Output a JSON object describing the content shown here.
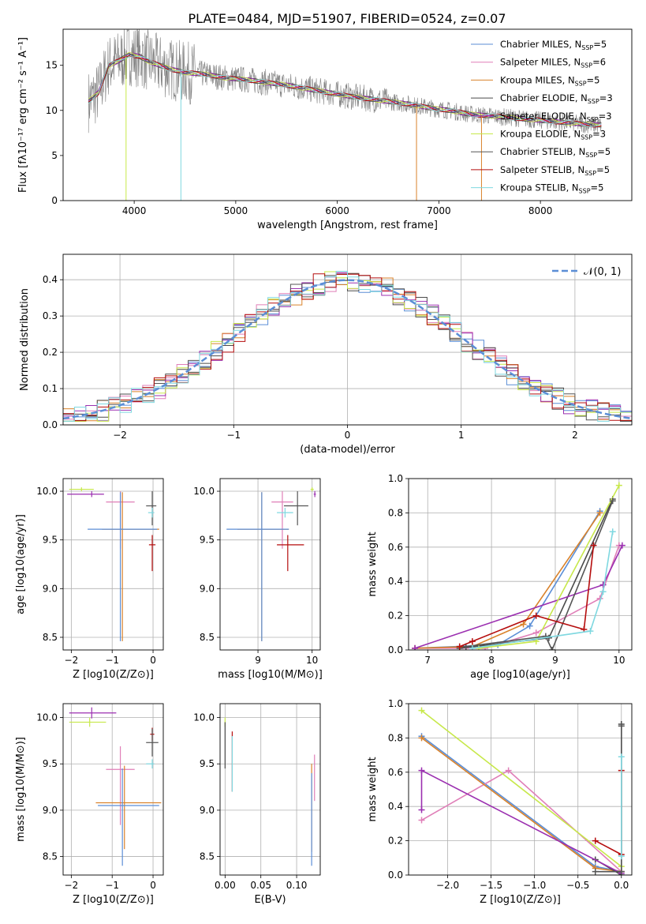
{
  "title": "PLATE=0484, MJD=51907, FIBERID=0524, z=0.07",
  "colors": {
    "Chabrier MILES": "#5b8ed6",
    "Salpeter MILES": "#e07fb8",
    "Kroupa MILES": "#d9822b",
    "Chabrier ELODIE": "#4a4a4a",
    "Salpeter ELODIE": "#9b2fb0",
    "Kroupa ELODIE": "#c7e84a",
    "Chabrier STELIB": "#555555",
    "Salpeter STELIB": "#b50d0d",
    "Kroupa STELIB": "#7fd8e0"
  },
  "chart_data": [
    {
      "id": "spectrum",
      "type": "line",
      "xlabel": "wavelength [Angstrom, rest frame]",
      "ylabel": "Flux [fλ10⁻¹⁷ erg cm⁻² s⁻¹ A⁻¹]",
      "xlim": [
        3300,
        8900
      ],
      "ylim": [
        0,
        19
      ],
      "xticks": [
        4000,
        5000,
        6000,
        7000,
        8000
      ],
      "yticks": [
        0,
        5,
        10,
        15
      ],
      "legend_position": "top-right",
      "legend": [
        "Chabrier MILES, N_SSP=5",
        "Salpeter MILES, N_SSP=6",
        "Kroupa MILES, N_SSP=5",
        "Chabrier ELODIE, N_SSP=3",
        "Salpeter ELODIE, N_SSP=3",
        "Kroupa ELODIE, N_SSP=3",
        "Chabrier STELIB, N_SSP=5",
        "Salpeter STELIB, N_SSP=5",
        "Kroupa STELIB, N_SSP=5"
      ],
      "model_continuum": {
        "x": [
          3550,
          3650,
          3750,
          3850,
          3950,
          4050,
          4150,
          4250,
          4350,
          4500,
          4700,
          4900,
          5100,
          5300,
          5500,
          5700,
          5900,
          6100,
          6300,
          6500,
          6700,
          6900,
          7100,
          7300,
          7500,
          7700,
          7900,
          8100,
          8300,
          8500
        ],
        "y": [
          11.0,
          12.0,
          15.0,
          15.5,
          16.2,
          16.0,
          15.4,
          15.0,
          14.6,
          14.2,
          14.0,
          13.6,
          13.4,
          13.1,
          12.8,
          12.4,
          12.0,
          11.6,
          11.3,
          11.0,
          10.7,
          10.3,
          10.0,
          9.6,
          9.4,
          9.2,
          9.0,
          8.8,
          8.6,
          8.4
        ]
      }
    },
    {
      "id": "residuals",
      "type": "line",
      "xlabel": "(data-model)/error",
      "ylabel": "Normed distribution",
      "xlim": [
        -2.5,
        2.5
      ],
      "ylim": [
        0,
        0.47
      ],
      "xticks": [
        -2,
        -1,
        0,
        1,
        2
      ],
      "yticks": [
        0.0,
        0.1,
        0.2,
        0.3,
        0.4
      ],
      "legend_label": "𝒩(0, 1)",
      "normal_curve": {
        "mean": 0,
        "sigma": 1
      }
    },
    {
      "id": "age_vs_Z",
      "type": "scatter",
      "xlabel": "Z [log10(Z/Z⊙)]",
      "ylabel": "age  [log10(age/yr)]",
      "xlim": [
        -2.2,
        0.25
      ],
      "ylim": [
        8.37,
        10.13
      ],
      "xticks": [
        -2,
        -1,
        0
      ],
      "yticks": [
        8.5,
        9.0,
        9.5,
        10.0
      ],
      "points": [
        {
          "model": "Kroupa ELODIE",
          "x": -1.75,
          "y": 10.02,
          "xerr": [
            0.3,
            0.3
          ],
          "yerr": [
            0.02,
            0.02
          ]
        },
        {
          "model": "Salpeter ELODIE",
          "x": -1.5,
          "y": 9.97,
          "xerr": [
            0.6,
            0.3
          ],
          "yerr": [
            0.03,
            0.03
          ]
        },
        {
          "model": "Salpeter MILES",
          "x": -0.8,
          "y": 9.89,
          "xerr": [
            0.35,
            0.35
          ],
          "yerr": [
            0.48,
            0.11
          ]
        },
        {
          "model": "Kroupa MILES",
          "x": -0.75,
          "y": 9.61,
          "xerr": [
            0.5,
            0.9
          ],
          "yerr": [
            1.15,
            0.38
          ]
        },
        {
          "model": "Chabrier MILES",
          "x": -0.8,
          "y": 9.61,
          "xerr": [
            0.8,
            0.9
          ],
          "yerr": [
            1.15,
            0.38
          ]
        },
        {
          "model": "Salpeter STELIB",
          "x": -0.02,
          "y": 9.45,
          "xerr": [
            0.08,
            0.08
          ],
          "yerr": [
            0.27,
            0.1
          ]
        },
        {
          "model": "Chabrier STELIB",
          "x": -0.02,
          "y": 9.85,
          "xerr": [
            0.15,
            0.1
          ],
          "yerr": [
            0.2,
            0.15
          ]
        },
        {
          "model": "Kroupa STELIB",
          "x": -0.02,
          "y": 9.78,
          "xerr": [
            0.1,
            0.05
          ],
          "yerr": [
            0.05,
            0.05
          ]
        }
      ]
    },
    {
      "id": "age_vs_mass",
      "type": "scatter",
      "xlabel": "mass [log10(M/M⊙)]",
      "ylabel": "",
      "xlim": [
        8.3,
        10.15
      ],
      "ylim": [
        8.37,
        10.13
      ],
      "xticks": [
        9,
        10
      ],
      "yticks": [
        8.5,
        9.0,
        9.5,
        10.0
      ],
      "points": [
        {
          "model": "Kroupa ELODIE",
          "x": 10.0,
          "y": 10.02,
          "xerr": [
            0.03,
            0.03
          ],
          "yerr": [
            0.02,
            0.02
          ]
        },
        {
          "model": "Salpeter ELODIE",
          "x": 10.05,
          "y": 9.97,
          "xerr": [
            0.02,
            0.02
          ],
          "yerr": [
            0.03,
            0.03
          ]
        },
        {
          "model": "Salpeter MILES",
          "x": 9.45,
          "y": 9.89,
          "xerr": [
            0.2,
            0.2
          ],
          "yerr": [
            0.48,
            0.11
          ]
        },
        {
          "model": "Kroupa MILES",
          "x": 9.07,
          "y": 9.61,
          "xerr": [
            0.45,
            0.5
          ],
          "yerr": [
            1.15,
            0.38
          ]
        },
        {
          "model": "Chabrier MILES",
          "x": 9.07,
          "y": 9.61,
          "xerr": [
            0.65,
            0.5
          ],
          "yerr": [
            1.15,
            0.38
          ]
        },
        {
          "model": "Salpeter STELIB",
          "x": 9.55,
          "y": 9.45,
          "xerr": [
            0.2,
            0.3
          ],
          "yerr": [
            0.27,
            0.1
          ]
        },
        {
          "model": "Chabrier STELIB",
          "x": 9.73,
          "y": 9.85,
          "xerr": [
            0.25,
            0.2
          ],
          "yerr": [
            0.2,
            0.15
          ]
        },
        {
          "model": "Kroupa STELIB",
          "x": 9.5,
          "y": 9.78,
          "xerr": [
            0.15,
            0.15
          ],
          "yerr": [
            0.05,
            0.05
          ]
        }
      ]
    },
    {
      "id": "weight_vs_age",
      "type": "line",
      "xlabel": "age  [log10(age/yr)]",
      "ylabel": "mass weight",
      "xlim": [
        6.7,
        10.2
      ],
      "ylim": [
        0,
        1
      ],
      "xticks": [
        7,
        8,
        9,
        10
      ],
      "yticks": [
        0.0,
        0.2,
        0.4,
        0.6,
        0.8,
        1.0
      ],
      "series": [
        {
          "model": "Chabrier MILES",
          "x": [
            6.8,
            8.1,
            8.6,
            9.7
          ],
          "y": [
            0.01,
            0.03,
            0.14,
            0.81
          ]
        },
        {
          "model": "Salpeter MILES",
          "x": [
            6.8,
            7.9,
            8.7,
            9.7,
            10.0
          ],
          "y": [
            0.01,
            0.01,
            0.1,
            0.3,
            0.61
          ]
        },
        {
          "model": "Kroupa MILES",
          "x": [
            6.8,
            7.7,
            8.5,
            9.7
          ],
          "y": [
            0.01,
            0.02,
            0.15,
            0.8
          ]
        },
        {
          "model": "Chabrier ELODIE",
          "x": [
            7.5,
            8.9,
            9.9
          ],
          "y": [
            0.01,
            0.07,
            0.88
          ]
        },
        {
          "model": "Salpeter ELODIE",
          "x": [
            6.8,
            9.75,
            10.05
          ],
          "y": [
            0.01,
            0.38,
            0.61
          ]
        },
        {
          "model": "Kroupa ELODIE",
          "x": [
            7.8,
            8.7,
            10.0
          ],
          "y": [
            0.01,
            0.05,
            0.96
          ]
        },
        {
          "model": "Chabrier STELIB",
          "x": [
            7.6,
            8.85,
            8.95,
            9.9
          ],
          "y": [
            0.02,
            0.08,
            0.0,
            0.87
          ]
        },
        {
          "model": "Salpeter STELIB",
          "x": [
            7.5,
            7.7,
            8.7,
            9.45,
            9.6
          ],
          "y": [
            0.02,
            0.05,
            0.2,
            0.12,
            0.61
          ]
        },
        {
          "model": "Kroupa STELIB",
          "x": [
            7.7,
            9.55,
            9.75,
            9.9
          ],
          "y": [
            0.01,
            0.11,
            0.34,
            0.69
          ]
        }
      ]
    },
    {
      "id": "mass_vs_Z",
      "type": "scatter",
      "xlabel": "Z [log10(Z/Z⊙)]",
      "ylabel": "mass [log10(M/M⊙)]",
      "xlim": [
        -2.2,
        0.25
      ],
      "ylim": [
        8.3,
        10.15
      ],
      "xticks": [
        -2,
        -1,
        0
      ],
      "yticks": [
        8.5,
        9.0,
        9.5,
        10.0
      ],
      "points": [
        {
          "model": "Kroupa ELODIE",
          "x": -1.55,
          "y": 9.95,
          "xerr": [
            0.5,
            0.4
          ],
          "yerr": [
            0.05,
            0.05
          ]
        },
        {
          "model": "Salpeter ELODIE",
          "x": -1.5,
          "y": 10.05,
          "xerr": [
            0.55,
            0.6
          ],
          "yerr": [
            0.06,
            0.06
          ]
        },
        {
          "model": "Salpeter MILES",
          "x": -0.8,
          "y": 9.44,
          "xerr": [
            0.35,
            0.35
          ],
          "yerr": [
            0.6,
            0.25
          ]
        },
        {
          "model": "Kroupa MILES",
          "x": -0.7,
          "y": 9.08,
          "xerr": [
            0.7,
            0.9
          ],
          "yerr": [
            0.5,
            0.4
          ]
        },
        {
          "model": "Chabrier MILES",
          "x": -0.75,
          "y": 9.05,
          "xerr": [
            0.6,
            0.9
          ],
          "yerr": [
            0.65,
            0.4
          ]
        },
        {
          "model": "Salpeter STELIB",
          "x": -0.02,
          "y": 9.82,
          "xerr": [
            0.05,
            0.05
          ],
          "yerr": [
            0.07,
            0.07
          ]
        },
        {
          "model": "Chabrier STELIB",
          "x": -0.02,
          "y": 9.73,
          "xerr": [
            0.15,
            0.15
          ],
          "yerr": [
            0.15,
            0.15
          ]
        },
        {
          "model": "Kroupa STELIB",
          "x": -0.02,
          "y": 9.5,
          "xerr": [
            0.15,
            0.05
          ],
          "yerr": [
            0.05,
            0.05
          ]
        }
      ]
    },
    {
      "id": "mass_vs_ebv",
      "type": "scatter",
      "xlabel": "E(B-V)",
      "ylabel": "",
      "xlim": [
        -0.007,
        0.133
      ],
      "ylim": [
        8.3,
        10.15
      ],
      "xticks": [
        0.0,
        0.05,
        0.1
      ],
      "yticks": [
        8.5,
        9.0,
        9.5,
        10.0
      ],
      "points": [
        {
          "model": "Kroupa ELODIE",
          "x": 0.0,
          "y": 9.95,
          "xerr": [
            0,
            0
          ],
          "yerr": [
            0.05,
            0.05
          ]
        },
        {
          "model": "Chabrier ELODIE",
          "x": 0.0,
          "y": 9.7,
          "xerr": [
            0,
            0
          ],
          "yerr": [
            0.25,
            0.25
          ]
        },
        {
          "model": "Salpeter STELIB",
          "x": 0.01,
          "y": 9.5,
          "xerr": [
            0,
            0
          ],
          "yerr": [
            0.3,
            0.35
          ]
        },
        {
          "model": "Kroupa STELIB",
          "x": 0.01,
          "y": 9.5,
          "xerr": [
            0,
            0
          ],
          "yerr": [
            0.3,
            0.3
          ]
        },
        {
          "model": "Salpeter MILES",
          "x": 0.125,
          "y": 9.35,
          "xerr": [
            0,
            0
          ],
          "yerr": [
            0.25,
            0.25
          ]
        },
        {
          "model": "Kroupa MILES",
          "x": 0.121,
          "y": 9.05,
          "xerr": [
            0,
            0
          ],
          "yerr": [
            0.5,
            0.45
          ]
        },
        {
          "model": "Chabrier MILES",
          "x": 0.121,
          "y": 8.9,
          "xerr": [
            0,
            0
          ],
          "yerr": [
            0.5,
            0.5
          ]
        }
      ]
    },
    {
      "id": "weight_vs_Z",
      "type": "line",
      "xlabel": "Z [log10(Z/Z⊙)]",
      "ylabel": "mass weight",
      "xlim": [
        -2.45,
        0.12
      ],
      "ylim": [
        0,
        1
      ],
      "xticks": [
        -2.0,
        -1.5,
        -1.0,
        -0.5,
        0.0
      ],
      "yticks": [
        0.0,
        0.2,
        0.4,
        0.6,
        0.8,
        1.0
      ],
      "series": [
        {
          "model": "Chabrier MILES",
          "x": [
            -2.3,
            -0.3,
            0.0
          ],
          "y": [
            0.81,
            0.05,
            0.02
          ]
        },
        {
          "model": "Salpeter MILES",
          "x": [
            -2.3,
            -1.3,
            0.0
          ],
          "y": [
            0.32,
            0.61,
            0.02
          ]
        },
        {
          "model": "Kroupa MILES",
          "x": [
            -2.3,
            -0.3,
            0.0
          ],
          "y": [
            0.8,
            0.04,
            0.02
          ]
        },
        {
          "model": "Chabrier ELODIE",
          "x": [
            -0.3,
            0.0,
            0.0
          ],
          "y": [
            0.09,
            0.0,
            0.88
          ]
        },
        {
          "model": "Salpeter ELODIE",
          "x": [
            -2.3,
            -2.3,
            0.0
          ],
          "y": [
            0.38,
            0.61,
            0.01
          ]
        },
        {
          "model": "Kroupa ELODIE",
          "x": [
            -2.3,
            0.0
          ],
          "y": [
            0.96,
            0.05
          ]
        },
        {
          "model": "Chabrier STELIB",
          "x": [
            -0.3,
            0.0,
            0.0
          ],
          "y": [
            0.02,
            0.02,
            0.87
          ]
        },
        {
          "model": "Salpeter STELIB",
          "x": [
            -0.3,
            0.0,
            0.0
          ],
          "y": [
            0.2,
            0.12,
            0.61
          ]
        },
        {
          "model": "Kroupa STELIB",
          "x": [
            0.0,
            0.0
          ],
          "y": [
            0.11,
            0.69
          ]
        }
      ]
    }
  ]
}
